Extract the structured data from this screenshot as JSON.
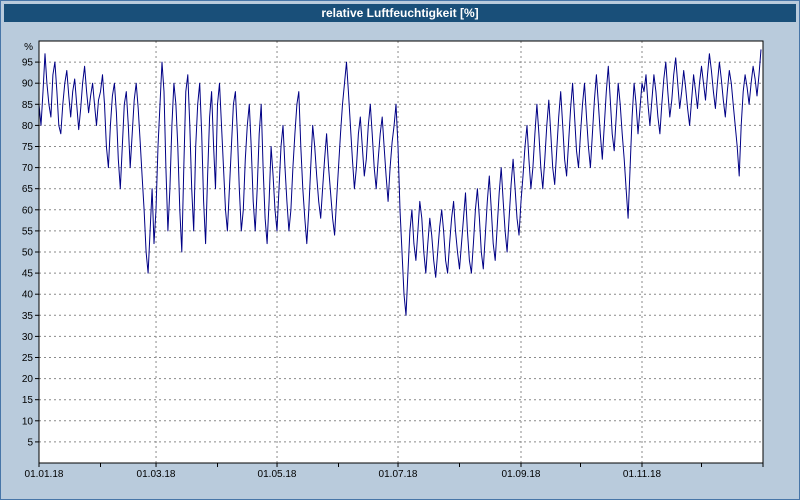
{
  "window": {
    "title": "relative Luftfeuchtigkeit [%]"
  },
  "colors": {
    "titlebar": "#194f79",
    "titlebar_text": "#ffffff",
    "frame": "#b9cbdc",
    "frame_border": "#4876a8",
    "plot_bg": "#ffffff",
    "plot_border": "#000000",
    "grid": "#8a8a8a",
    "line": "#000085",
    "axis_text": "#000000"
  },
  "chart_data": {
    "type": "line",
    "title": "relative Luftfeuchtigkeit [%]",
    "ylabel": "%",
    "xlabel": "",
    "ylim": [
      0,
      100
    ],
    "y_ticks": [
      5,
      10,
      15,
      20,
      25,
      30,
      35,
      40,
      45,
      50,
      55,
      60,
      65,
      70,
      75,
      80,
      85,
      90,
      95
    ],
    "x_range_days": [
      0,
      365
    ],
    "x_ticks": [
      {
        "label": "01.01.18",
        "day": 0
      },
      {
        "label": "01.03.18",
        "day": 59
      },
      {
        "label": "01.05.18",
        "day": 120
      },
      {
        "label": "01.07.18",
        "day": 181
      },
      {
        "label": "01.09.18",
        "day": 243
      },
      {
        "label": "01.11.18",
        "day": 304
      }
    ],
    "x_minor_tick_days": [
      0,
      31,
      59,
      90,
      120,
      151,
      181,
      212,
      243,
      273,
      304,
      334,
      365
    ],
    "grid": "dashed",
    "legend_position": "none",
    "series": [
      {
        "name": "relative Luftfeuchtigkeit",
        "unit": "%",
        "sample_interval": "daily",
        "values": [
          85,
          80,
          88,
          97,
          90,
          85,
          82,
          92,
          95,
          88,
          80,
          78,
          85,
          90,
          93,
          87,
          82,
          88,
          91,
          85,
          79,
          84,
          90,
          94,
          88,
          83,
          87,
          90,
          85,
          80,
          86,
          88,
          92,
          85,
          75,
          70,
          80,
          87,
          90,
          83,
          72,
          65,
          75,
          85,
          88,
          80,
          70,
          78,
          86,
          90,
          84,
          76,
          68,
          60,
          50,
          45,
          55,
          65,
          52,
          60,
          75,
          85,
          95,
          88,
          70,
          55,
          65,
          80,
          90,
          85,
          75,
          60,
          50,
          70,
          88,
          92,
          80,
          65,
          55,
          75,
          85,
          90,
          78,
          62,
          52,
          68,
          82,
          88,
          75,
          65,
          85,
          90,
          80,
          70,
          60,
          55,
          65,
          75,
          85,
          88,
          78,
          65,
          55,
          60,
          72,
          80,
          85,
          75,
          62,
          55,
          65,
          78,
          85,
          70,
          58,
          52,
          62,
          75,
          68,
          60,
          55,
          65,
          75,
          80,
          70,
          62,
          55,
          60,
          70,
          78,
          85,
          88,
          75,
          65,
          58,
          52,
          60,
          70,
          80,
          75,
          68,
          62,
          58,
          65,
          72,
          78,
          70,
          64,
          58,
          54,
          62,
          70,
          78,
          85,
          90,
          95,
          88,
          80,
          72,
          65,
          70,
          78,
          82,
          75,
          68,
          72,
          80,
          85,
          78,
          70,
          65,
          72,
          78,
          82,
          75,
          68,
          62,
          70,
          76,
          80,
          85,
          75,
          60,
          50,
          40,
          35,
          45,
          55,
          60,
          52,
          48,
          55,
          62,
          58,
          50,
          45,
          52,
          58,
          54,
          48,
          44,
          50,
          56,
          60,
          55,
          48,
          45,
          52,
          58,
          62,
          55,
          50,
          46,
          52,
          58,
          64,
          55,
          48,
          45,
          52,
          60,
          65,
          58,
          50,
          46,
          54,
          62,
          68,
          60,
          52,
          48,
          56,
          64,
          70,
          62,
          55,
          50,
          58,
          66,
          72,
          65,
          58,
          54,
          62,
          68,
          75,
          80,
          72,
          65,
          70,
          78,
          85,
          78,
          70,
          65,
          72,
          80,
          86,
          78,
          70,
          66,
          74,
          82,
          88,
          80,
          72,
          68,
          76,
          84,
          90,
          82,
          74,
          70,
          78,
          85,
          90,
          82,
          75,
          70,
          78,
          86,
          92,
          85,
          78,
          72,
          80,
          88,
          94,
          86,
          78,
          74,
          82,
          90,
          85,
          78,
          72,
          65,
          58,
          70,
          82,
          90,
          85,
          78,
          84,
          90,
          88,
          92,
          85,
          80,
          86,
          92,
          88,
          82,
          78,
          85,
          91,
          95,
          88,
          82,
          86,
          92,
          96,
          90,
          84,
          88,
          93,
          89,
          84,
          80,
          86,
          92,
          88,
          84,
          90,
          94,
          90,
          86,
          92,
          97,
          93,
          88,
          84,
          90,
          95,
          91,
          86,
          82,
          88,
          93,
          90,
          85,
          80,
          75,
          68,
          80,
          88,
          92,
          89,
          85,
          90,
          94,
          91,
          87,
          92,
          98
        ]
      }
    ]
  }
}
